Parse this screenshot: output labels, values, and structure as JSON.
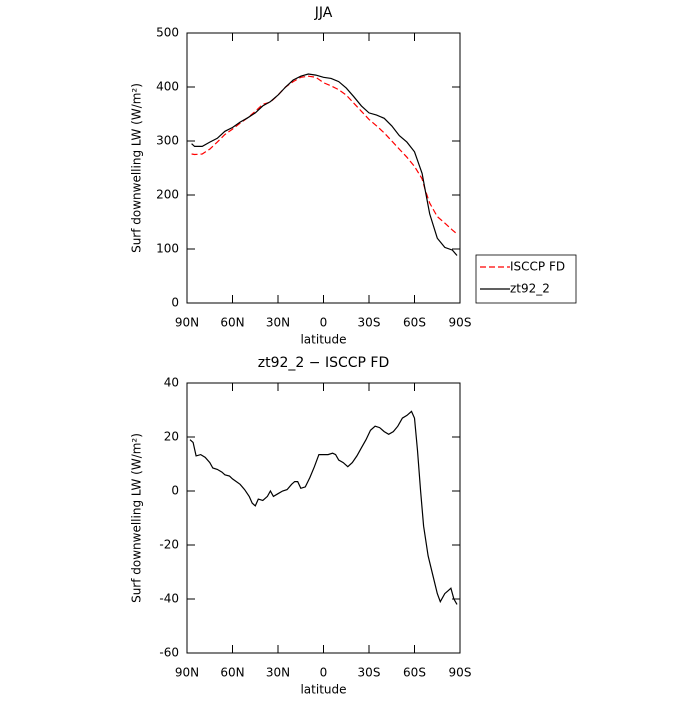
{
  "chart_data": [
    {
      "type": "line",
      "title": "JJA",
      "xlabel": "latitude",
      "ylabel": "Surf downwelling LW (W/m²)",
      "x": [
        87,
        85,
        80,
        75,
        70,
        65,
        60,
        55,
        50,
        45,
        40,
        35,
        30,
        25,
        20,
        15,
        10,
        5,
        0,
        -5,
        -10,
        -15,
        -20,
        -25,
        -30,
        -35,
        -40,
        -45,
        -50,
        -55,
        -60,
        -65,
        -67,
        -70,
        -75,
        -80,
        -85,
        -88
      ],
      "series": [
        {
          "name": "ISCCP FD",
          "color": "#ff0000",
          "dash": true,
          "values": [
            276,
            275,
            276,
            285,
            298,
            312,
            322,
            333,
            343,
            355,
            368,
            372,
            385,
            400,
            410,
            418,
            420,
            418,
            408,
            402,
            395,
            385,
            370,
            355,
            340,
            328,
            315,
            300,
            285,
            270,
            253,
            230,
            210,
            185,
            160,
            148,
            135,
            128
          ]
        },
        {
          "name": "zt92_2",
          "color": "#000000",
          "dash": false,
          "values": [
            295,
            290,
            290,
            298,
            305,
            318,
            325,
            335,
            343,
            352,
            365,
            373,
            385,
            400,
            413,
            420,
            424,
            422,
            418,
            416,
            410,
            398,
            382,
            365,
            352,
            348,
            342,
            328,
            310,
            298,
            280,
            240,
            210,
            165,
            120,
            103,
            98,
            88
          ]
        }
      ],
      "xlim": [
        90,
        -90
      ],
      "xticks": [
        {
          "value": 90,
          "label": "90N"
        },
        {
          "value": 60,
          "label": "60N"
        },
        {
          "value": 30,
          "label": "30N"
        },
        0,
        {
          "value": -30,
          "label": "30S"
        },
        {
          "value": -60,
          "label": "60S"
        },
        {
          "value": -90,
          "label": "90S"
        }
      ],
      "ylim": [
        0,
        500
      ],
      "yticks": [
        0,
        100,
        200,
        300,
        400,
        500
      ],
      "legend": "right"
    },
    {
      "type": "line",
      "title": "zt92_2 − ISCCP FD",
      "xlabel": "latitude",
      "ylabel": "Surf downwelling LW (W/m²)",
      "x": [
        88,
        86,
        84,
        81,
        78,
        75,
        73,
        70,
        67,
        65,
        62,
        60,
        55,
        52,
        49,
        47,
        45,
        43,
        40,
        37,
        35,
        33,
        30,
        27,
        24,
        21,
        19,
        17,
        15,
        12,
        9,
        6,
        3,
        0,
        -3,
        -6,
        -8,
        -10,
        -13,
        -16,
        -19,
        -22,
        -25,
        -28,
        -31,
        -34,
        -37,
        -40,
        -43,
        -46,
        -49,
        -52,
        -55,
        -58,
        -60,
        -62,
        -64,
        -66,
        -69,
        -72,
        -75,
        -77,
        -80,
        -82,
        -84,
        -86,
        -88
      ],
      "series": [
        {
          "color": "#000000",
          "dash": false,
          "values": [
            19,
            18,
            13,
            13.5,
            12.5,
            10.5,
            8.5,
            8,
            7,
            6,
            5.5,
            4.5,
            2.5,
            0.5,
            -2,
            -4.5,
            -5.5,
            -3,
            -3.5,
            -2,
            0,
            -2,
            -1,
            0,
            0.5,
            2.5,
            3.5,
            3.5,
            1,
            1.5,
            5,
            9,
            13.5,
            13.5,
            13.5,
            14,
            13.5,
            11.5,
            10.5,
            9,
            10.5,
            13,
            16,
            19,
            22.5,
            24,
            23.5,
            22,
            21,
            22,
            24,
            27,
            28,
            29.5,
            27,
            15,
            0,
            -13,
            -24,
            -31,
            -38,
            -41,
            -38,
            -37,
            -36,
            -40,
            -42
          ]
        }
      ],
      "xlim": [
        90,
        -90
      ],
      "xticks": [
        {
          "value": 90,
          "label": "90N"
        },
        {
          "value": 60,
          "label": "60N"
        },
        {
          "value": 30,
          "label": "30N"
        },
        0,
        {
          "value": -30,
          "label": "30S"
        },
        {
          "value": -60,
          "label": "60S"
        },
        {
          "value": -90,
          "label": "90S"
        }
      ],
      "ylim": [
        -60,
        40
      ],
      "yticks": [
        -60,
        -40,
        -20,
        0,
        20,
        40
      ]
    }
  ]
}
